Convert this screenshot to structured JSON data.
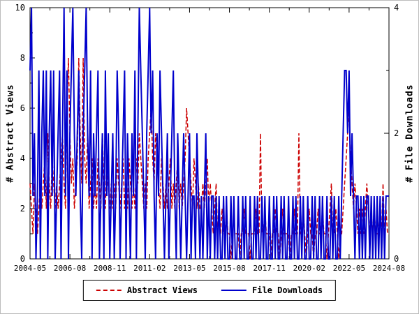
{
  "colors": {
    "abstract_views": "#cc0000",
    "file_downloads": "#0000cc",
    "axis": "#000000",
    "background": "#ffffff"
  },
  "chart_data": {
    "type": "line",
    "title": "",
    "x_start": "2004-05",
    "x_step_months": 1,
    "n_points": 244,
    "x_ticks": [
      "2004-05",
      "2006-08",
      "2008-11",
      "2011-02",
      "2013-05",
      "2015-08",
      "2017-11",
      "2020-02",
      "2022-05",
      "2024-08"
    ],
    "x_tick_indices": [
      0,
      27,
      54,
      81,
      108,
      135,
      162,
      189,
      216,
      243
    ],
    "left_axis": {
      "label": "# Abstract Views",
      "min": 0,
      "max": 10,
      "ticks": [
        0,
        2,
        4,
        6,
        8,
        10
      ],
      "minor_ticks": [
        1,
        3,
        5,
        7,
        9
      ]
    },
    "right_axis": {
      "label": "# File Downloads",
      "min": 0,
      "max": 4,
      "ticks": [
        0,
        2,
        4
      ],
      "minor_ticks": [
        1,
        3
      ]
    },
    "grid": false,
    "legend_position": "bottom-center",
    "series": [
      {
        "name": "Abstract Views",
        "color": "#cc0000",
        "style": "dashed",
        "axis": "left",
        "values": [
          3,
          2,
          1,
          3,
          2,
          1,
          2,
          3,
          2,
          3,
          4,
          2,
          5,
          3,
          2,
          4,
          3,
          2,
          3,
          2,
          3,
          4,
          5,
          3,
          2,
          6,
          8,
          5,
          3,
          4,
          2,
          3,
          4,
          8,
          5,
          3,
          8,
          4,
          3,
          5,
          2,
          3,
          4,
          2,
          3,
          2,
          4,
          3,
          2,
          5,
          3,
          2,
          4,
          3,
          2,
          3,
          2,
          3,
          2,
          4,
          3,
          2,
          3,
          4,
          2,
          3,
          2,
          4,
          3,
          2,
          3,
          2,
          4,
          3,
          5,
          4,
          3,
          2,
          3,
          2,
          4,
          5,
          6,
          4,
          3,
          5,
          4,
          3,
          2,
          4,
          3,
          2,
          3,
          2,
          3,
          4,
          2,
          3,
          2,
          3,
          4,
          2,
          3,
          2,
          3,
          4,
          6,
          5,
          4,
          3,
          2,
          4,
          3,
          2,
          3,
          2,
          2,
          3,
          2,
          3,
          4,
          2,
          3,
          2,
          1,
          2,
          3,
          1,
          2,
          1,
          2,
          1,
          1,
          2,
          1,
          1,
          0,
          1,
          1,
          1,
          1,
          1,
          0,
          1,
          1,
          2,
          1,
          1,
          1,
          0,
          1,
          1,
          1,
          2,
          1,
          1,
          5,
          1,
          1,
          2,
          1,
          1,
          1,
          0,
          1,
          1,
          2,
          1,
          1,
          0,
          1,
          2,
          1,
          1,
          1,
          1,
          0,
          1,
          1,
          2,
          1,
          1,
          5,
          1,
          1,
          2,
          1,
          0,
          1,
          2,
          1,
          1,
          0,
          1,
          1,
          2,
          1,
          1,
          2,
          1,
          1,
          0,
          1,
          2,
          3,
          1,
          1,
          2,
          1,
          0,
          1,
          1,
          2,
          3,
          4,
          5,
          6,
          4,
          3,
          2,
          3,
          2,
          1,
          2,
          1,
          2,
          1,
          2,
          3,
          2,
          1,
          2,
          1,
          2,
          1,
          1,
          1,
          2,
          1,
          3,
          1,
          2,
          1,
          1
        ]
      },
      {
        "name": "File Downloads",
        "color": "#0000cc",
        "style": "solid",
        "axis": "right",
        "values": [
          3,
          4,
          1,
          2,
          0,
          1,
          3,
          0,
          2,
          3,
          1,
          3,
          0,
          2,
          3,
          1,
          3,
          0,
          1,
          2,
          3,
          0,
          2,
          4,
          1,
          3,
          0,
          2,
          3,
          4,
          2,
          1,
          2,
          3,
          1,
          0,
          2,
          3,
          4,
          2,
          1,
          3,
          0,
          2,
          1,
          2,
          3,
          0,
          1,
          2,
          0,
          3,
          1,
          2,
          0,
          1,
          2,
          0,
          1,
          3,
          2,
          0,
          1,
          2,
          3,
          0,
          2,
          1,
          0,
          2,
          1,
          3,
          0,
          2,
          4,
          3,
          2,
          1,
          0,
          2,
          3,
          4,
          2,
          3,
          1,
          0,
          2,
          1,
          3,
          2,
          1,
          0,
          1,
          2,
          0,
          1,
          2,
          3,
          1,
          0,
          2,
          1,
          0,
          1,
          2,
          1,
          0,
          1,
          2,
          0,
          1,
          1,
          0,
          2,
          1,
          0,
          1,
          0,
          1,
          2,
          0,
          1,
          0,
          1,
          1,
          0,
          1,
          0,
          1,
          0,
          0,
          1,
          0,
          1,
          0,
          0,
          1,
          0,
          1,
          0,
          0,
          1,
          0,
          0,
          1,
          0,
          1,
          0,
          0,
          1,
          0,
          0,
          1,
          0,
          1,
          0,
          0,
          1,
          0,
          1,
          0,
          0,
          1,
          0,
          0,
          1,
          0,
          1,
          0,
          0,
          1,
          0,
          1,
          0,
          0,
          1,
          0,
          0,
          1,
          0,
          1,
          0,
          0,
          1,
          0,
          1,
          0,
          0,
          1,
          0,
          0,
          1,
          0,
          1,
          0,
          0,
          1,
          0,
          1,
          0,
          0,
          1,
          0,
          0,
          1,
          0,
          1,
          0,
          0,
          1,
          0,
          1,
          2,
          3,
          3,
          2,
          3,
          1,
          2,
          1,
          0,
          1,
          1,
          0,
          1,
          0,
          1,
          0,
          1,
          1,
          0,
          1,
          0,
          1,
          0,
          1,
          0,
          1,
          0,
          1,
          0,
          1,
          1,
          1
        ]
      }
    ]
  }
}
